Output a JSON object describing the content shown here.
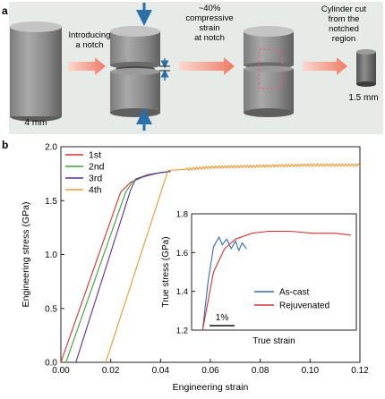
{
  "panel_a": {
    "label": "a",
    "step1": "Introducing\na notch",
    "step2": "~40%\ncompressive\nstrain\nat notch",
    "step3": "Cylinder cut\nfrom the\nnotched\nregion",
    "diameter": "4 mm",
    "small_size": "1.5 mm",
    "colors": {
      "panel_bg": "#e6ebe8",
      "arrow": "#f08a78",
      "force_arrow": "#2b6fa8",
      "cut_box": "#e0607a"
    }
  },
  "chart_data": [
    {
      "panel": "b",
      "type": "line",
      "xlabel": "Engineering strain",
      "ylabel": "Engineering stress (GPa)",
      "xlim": [
        0.0,
        0.12
      ],
      "ylim": [
        0.0,
        2.0
      ],
      "xticks": [
        "0.00",
        "0.02",
        "0.04",
        "0.06",
        "0.08",
        "0.10",
        "0.12"
      ],
      "yticks": [
        "0.0",
        "0.5",
        "1.0",
        "1.5",
        "2.0"
      ],
      "legend_position": "top-left",
      "series": [
        {
          "name": "1st",
          "color": "#d9302c",
          "x": [
            0.0,
            0.024,
            0.028,
            0.033,
            0.04,
            0.044
          ],
          "y": [
            0.0,
            1.58,
            1.67,
            1.72,
            1.76,
            1.77
          ]
        },
        {
          "name": "2nd",
          "color": "#3aa03a",
          "x": [
            0.002,
            0.026,
            0.029,
            0.034,
            0.04,
            0.044
          ],
          "y": [
            0.0,
            1.58,
            1.68,
            1.73,
            1.76,
            1.77
          ]
        },
        {
          "name": "3rd",
          "color": "#5b2d9e",
          "x": [
            0.006,
            0.028,
            0.03,
            0.035,
            0.04,
            0.044
          ],
          "y": [
            0.0,
            1.6,
            1.7,
            1.74,
            1.76,
            1.77
          ]
        },
        {
          "name": "4th",
          "color": "#f0962e",
          "x": [
            0.018,
            0.043,
            0.05,
            0.06,
            0.08,
            0.1,
            0.12
          ],
          "y": [
            0.0,
            1.78,
            1.79,
            1.81,
            1.82,
            1.83,
            1.83
          ],
          "serrated_from_x": 0.05
        }
      ]
    },
    {
      "panel": "b-inset",
      "type": "line",
      "xlabel": "True strain",
      "ylabel": "True stress (GPa)",
      "ylim": [
        1.2,
        1.8
      ],
      "yticks": [
        "1.2",
        "1.4",
        "1.6",
        "1.8"
      ],
      "scale_bar": "1%",
      "legend_position": "bottom-right",
      "series": [
        {
          "name": "As-cast",
          "color": "#2f6db0",
          "x": [
            0.0,
            0.005,
            0.01,
            0.013,
            0.015,
            0.018,
            0.022,
            0.026,
            0.03,
            0.033,
            0.036,
            0.04
          ],
          "y": [
            1.2,
            1.45,
            1.63,
            1.66,
            1.68,
            1.64,
            1.67,
            1.62,
            1.66,
            1.61,
            1.65,
            1.62
          ]
        },
        {
          "name": "Rejuvenated",
          "color": "#d9302c",
          "x": [
            0.0,
            0.01,
            0.02,
            0.03,
            0.045,
            0.06,
            0.08,
            0.1,
            0.12,
            0.135
          ],
          "y": [
            1.2,
            1.5,
            1.62,
            1.67,
            1.7,
            1.71,
            1.71,
            1.7,
            1.7,
            1.69
          ]
        }
      ]
    }
  ],
  "panel_b_label": "b"
}
